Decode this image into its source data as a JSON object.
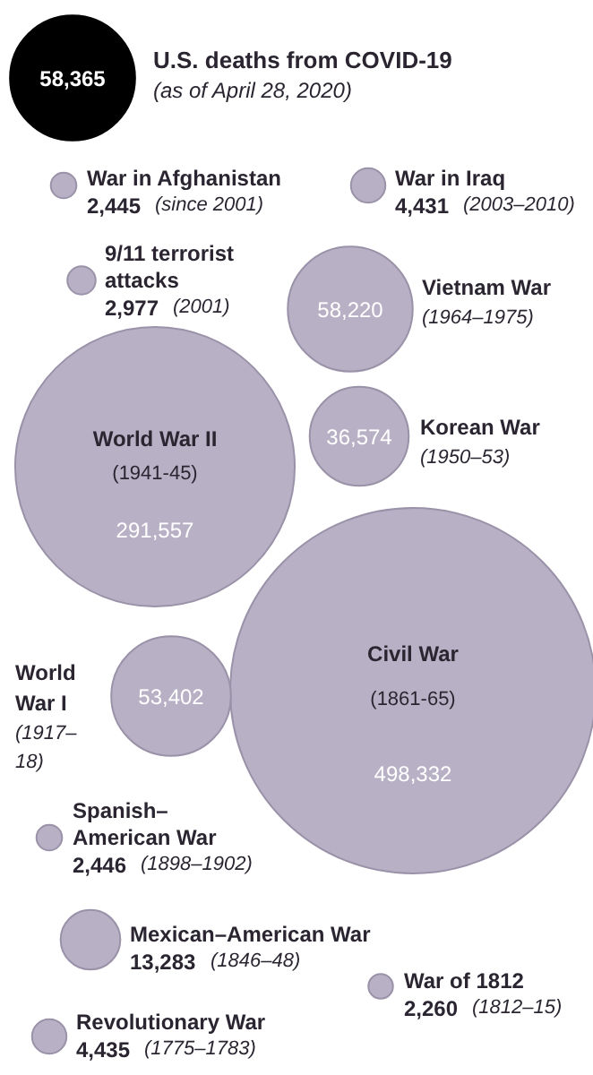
{
  "chart_data": {
    "type": "other",
    "subtitle": "(as of April 28, 2020)",
    "categories": [
      "U.S. deaths from COVID-19",
      "War in Afghanistan",
      "War in Iraq",
      "9/11 terrorist attacks",
      "Vietnam War",
      "World War II",
      "Korean War",
      "Civil War",
      "World War I",
      "Spanish–American War",
      "Mexican–American War",
      "War of 1812",
      "Revolutionary War"
    ],
    "values": [
      58365,
      2445,
      4431,
      2977,
      58220,
      291557,
      36574,
      498332,
      53402,
      2446,
      13283,
      2260,
      4435
    ],
    "value_labels": [
      "58,365",
      "2,445",
      "4,431",
      "2,977",
      "58,220",
      "291,557",
      "36,574",
      "498,332",
      "53,402",
      "2,446",
      "13,283",
      "2,260",
      "4,435"
    ],
    "annotations": [
      "(since 2001)",
      "(2003–2010)",
      "(2001)",
      "(1964–1975)",
      "(1941-45)",
      "(1950–53)",
      "(1861-65)",
      "(1917–18)",
      "(1898–1902)",
      "(1846–48)",
      "(1812–15)",
      "(1775–1783)"
    ],
    "colors": [
      "#000000",
      "#b8b0c4",
      "#b8b0c4",
      "#b8b0c4",
      "#b8b0c4",
      "#b8b0c4",
      "#b8b0c4",
      "#b8b0c4",
      "#b8b0c4",
      "#b8b0c4",
      "#b8b0c4",
      "#b8b0c4",
      "#b8b0c4"
    ]
  }
}
